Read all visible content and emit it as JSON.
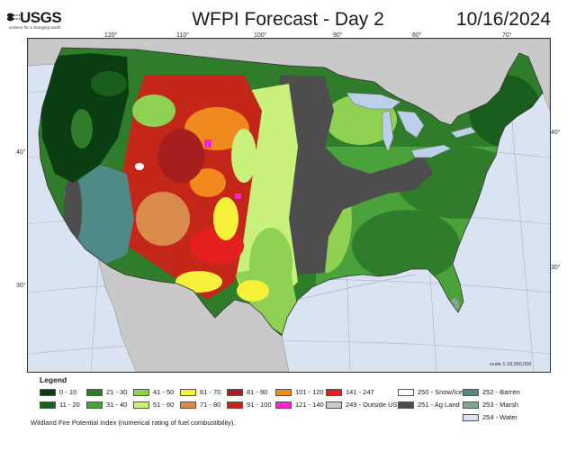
{
  "header": {
    "agency": "USGS",
    "tagline": "science for a changing world",
    "title": "WFPI Forecast - Day 2",
    "date": "10/16/2024"
  },
  "graticule": {
    "longitudes": [
      "120°",
      "110°",
      "100°",
      "90°",
      "80°",
      "70°"
    ],
    "latitudes_left": [
      "40°",
      "30°"
    ],
    "latitudes_right": [
      "40°",
      "30°"
    ]
  },
  "scale": "scale 1:18,050,000",
  "colors": {
    "ocean": "#d9e3f2",
    "outside_us": "#c9c9c9",
    "lakes": "#bcd0ea"
  },
  "legend": {
    "title": "Legend",
    "items": [
      {
        "label": "0 - 10",
        "color": "#0b3d12"
      },
      {
        "label": "11 - 20",
        "color": "#1a5e1e"
      },
      {
        "label": "21 - 30",
        "color": "#2f7d2a"
      },
      {
        "label": "31 - 40",
        "color": "#4aa33a"
      },
      {
        "label": "41 - 50",
        "color": "#8fd153"
      },
      {
        "label": "51 - 60",
        "color": "#c9f07a"
      },
      {
        "label": "61 - 70",
        "color": "#f5f03a"
      },
      {
        "label": "71 - 80",
        "color": "#d98c4a"
      },
      {
        "label": "81 - 90",
        "color": "#a61e1e"
      },
      {
        "label": "91 - 100",
        "color": "#c4261a"
      },
      {
        "label": "101 - 120",
        "color": "#f08a1e"
      },
      {
        "label": "121 - 140",
        "color": "#f026d8"
      },
      {
        "label": "141 - 247",
        "color": "#e51e1e"
      },
      {
        "label": "249 - Outside US",
        "color": "#c9c9c9"
      },
      {
        "label": "250 - Snow/Ice",
        "color": "#ffffff"
      },
      {
        "label": "251 - Ag Land",
        "color": "#4d4d4d"
      },
      {
        "label": "252 - Barren",
        "color": "#4f8a86"
      },
      {
        "label": "253 - Marsh",
        "color": "#7fa694"
      },
      {
        "label": "254 - Water",
        "color": "#d9e3f2"
      }
    ],
    "note": "Wildland Fire Potential Index (numerical rating of fuel combustibility)."
  }
}
